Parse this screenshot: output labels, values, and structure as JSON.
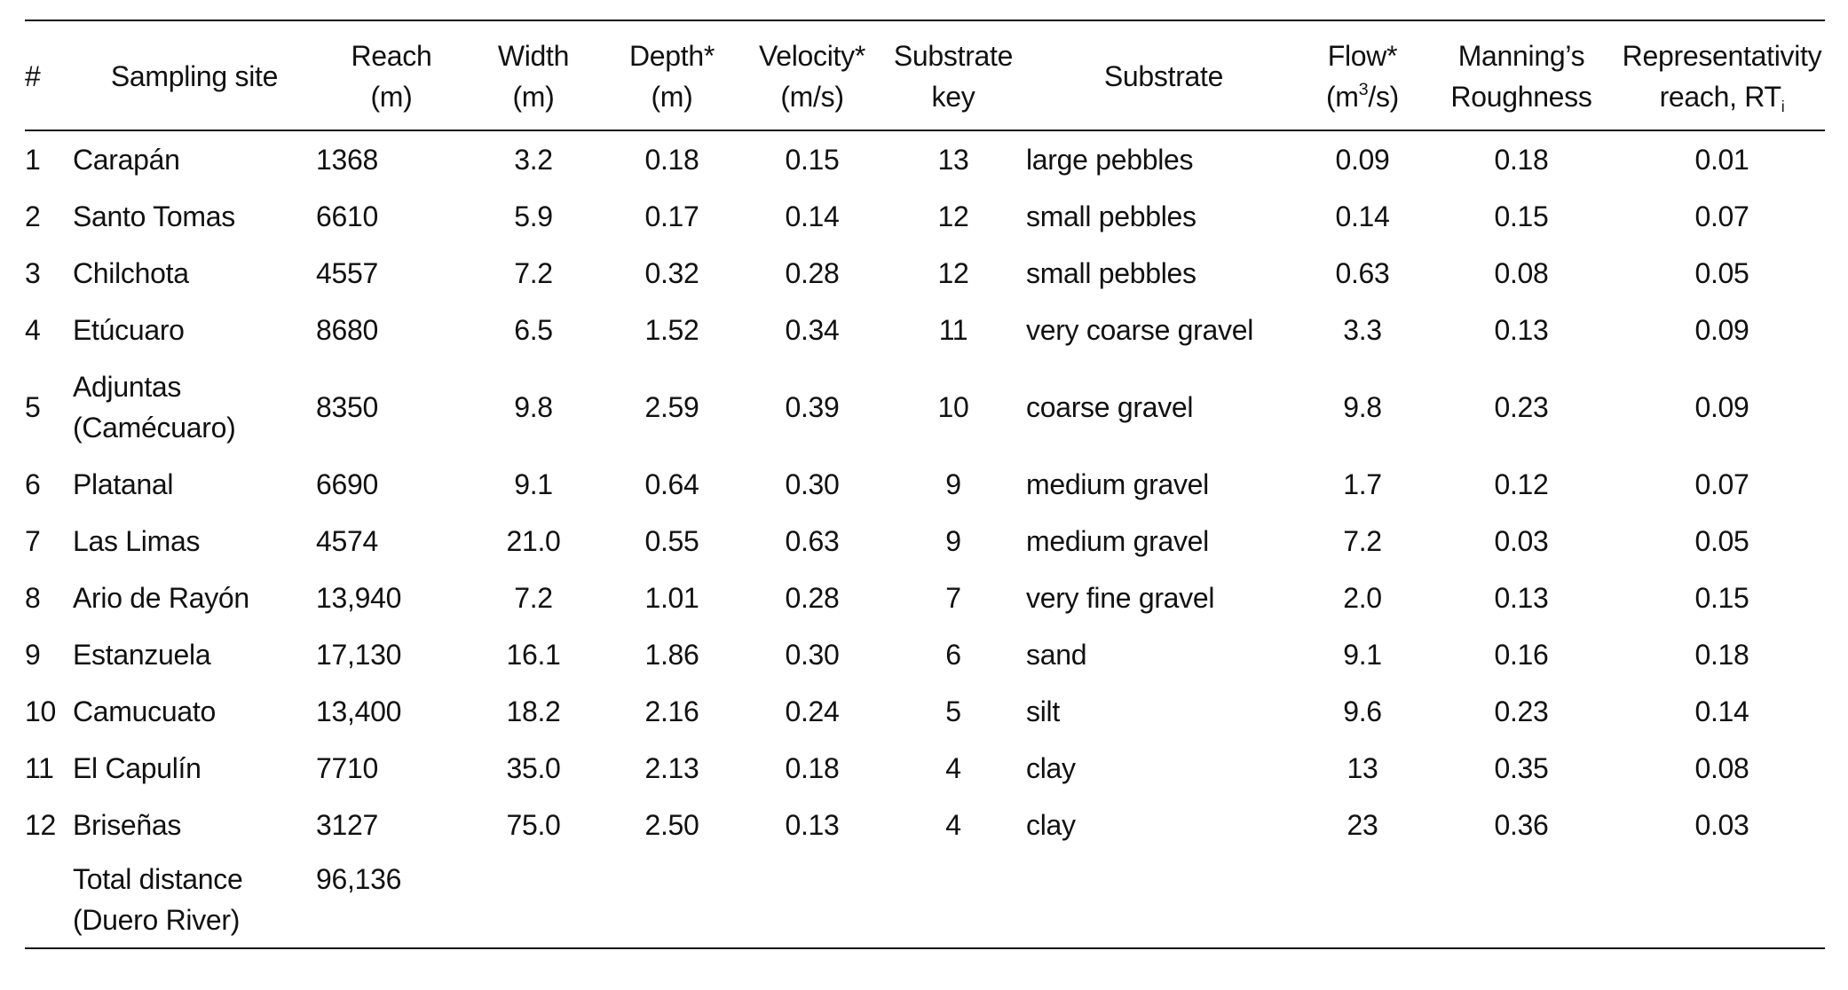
{
  "table": {
    "headers": {
      "num": "#",
      "site": "Sampling site",
      "reach_l1": "Reach",
      "reach_l2": "(m)",
      "width_l1": "Width",
      "width_l2": "(m)",
      "depth_l1": "Depth*",
      "depth_l2": "(m)",
      "velocity_l1": "Velocity*",
      "velocity_l2": "(m/s)",
      "substrate_key_l1": "Substrate",
      "substrate_key_l2": "key",
      "substrate": "Substrate",
      "flow_l1": "Flow*",
      "flow_l2_a": "(m",
      "flow_l2_sup": "3",
      "flow_l2_b": "/s)",
      "manning_l1": "Manning’s",
      "manning_l2": "Roughness",
      "rep_l1": "Representativity",
      "rep_l2": "reach, RT",
      "rep_sub": "i"
    },
    "rows": [
      {
        "num": "1",
        "site": "Carapán",
        "site2": "",
        "reach": "1368",
        "width": "3.2",
        "depth": "0.18",
        "velocity": "0.15",
        "key": "13",
        "substrate": "large pebbles",
        "flow": "0.09",
        "manning": "0.18",
        "rep": "0.01"
      },
      {
        "num": "2",
        "site": "Santo Tomas",
        "site2": "",
        "reach": "6610",
        "width": "5.9",
        "depth": "0.17",
        "velocity": "0.14",
        "key": "12",
        "substrate": "small pebbles",
        "flow": "0.14",
        "manning": "0.15",
        "rep": "0.07"
      },
      {
        "num": "3",
        "site": "Chilchota",
        "site2": "",
        "reach": "4557",
        "width": "7.2",
        "depth": "0.32",
        "velocity": "0.28",
        "key": "12",
        "substrate": "small pebbles",
        "flow": "0.63",
        "manning": "0.08",
        "rep": "0.05"
      },
      {
        "num": "4",
        "site": "Etúcuaro",
        "site2": "",
        "reach": "8680",
        "width": "6.5",
        "depth": "1.52",
        "velocity": "0.34",
        "key": "11",
        "substrate": "very coarse gravel",
        "flow": "3.3",
        "manning": "0.13",
        "rep": "0.09"
      },
      {
        "num": "5",
        "site": "Adjuntas",
        "site2": "(Camécuaro)",
        "reach": "8350",
        "width": "9.8",
        "depth": "2.59",
        "velocity": "0.39",
        "key": "10",
        "substrate": "coarse gravel",
        "flow": "9.8",
        "manning": "0.23",
        "rep": "0.09"
      },
      {
        "num": "6",
        "site": "Platanal",
        "site2": "",
        "reach": "6690",
        "width": "9.1",
        "depth": "0.64",
        "velocity": "0.30",
        "key": "9",
        "substrate": "medium gravel",
        "flow": "1.7",
        "manning": "0.12",
        "rep": "0.07"
      },
      {
        "num": "7",
        "site": "Las Limas",
        "site2": "",
        "reach": "4574",
        "width": "21.0",
        "depth": "0.55",
        "velocity": "0.63",
        "key": "9",
        "substrate": "medium gravel",
        "flow": "7.2",
        "manning": "0.03",
        "rep": "0.05"
      },
      {
        "num": "8",
        "site": "Ario de Rayón",
        "site2": "",
        "reach": "13,940",
        "width": "7.2",
        "depth": "1.01",
        "velocity": "0.28",
        "key": "7",
        "substrate": "very fine gravel",
        "flow": "2.0",
        "manning": "0.13",
        "rep": "0.15"
      },
      {
        "num": "9",
        "site": "Estanzuela",
        "site2": "",
        "reach": "17,130",
        "width": "16.1",
        "depth": "1.86",
        "velocity": "0.30",
        "key": "6",
        "substrate": "sand",
        "flow": "9.1",
        "manning": "0.16",
        "rep": "0.18"
      },
      {
        "num": "10",
        "site": "Camucuato",
        "site2": "",
        "reach": "13,400",
        "width": "18.2",
        "depth": "2.16",
        "velocity": "0.24",
        "key": "5",
        "substrate": "silt",
        "flow": "9.6",
        "manning": "0.23",
        "rep": "0.14"
      },
      {
        "num": "11",
        "site": "El Capulín",
        "site2": "",
        "reach": "7710",
        "width": "35.0",
        "depth": "2.13",
        "velocity": "0.18",
        "key": "4",
        "substrate": "clay",
        "flow": "13",
        "manning": "0.35",
        "rep": "0.08"
      },
      {
        "num": "12",
        "site": "Briseñas",
        "site2": "",
        "reach": "3127",
        "width": "75.0",
        "depth": "2.50",
        "velocity": "0.13",
        "key": "4",
        "substrate": "clay",
        "flow": "23",
        "manning": "0.36",
        "rep": "0.03"
      }
    ],
    "total": {
      "label_l1": "Total distance",
      "label_l2": "(Duero River)",
      "reach": "96,136"
    }
  }
}
